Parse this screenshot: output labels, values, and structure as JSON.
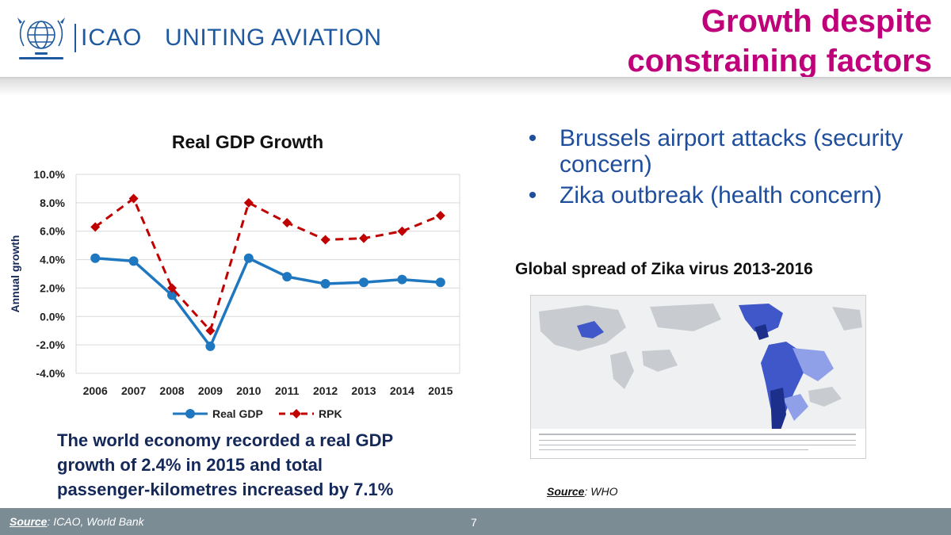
{
  "header": {
    "brand_name": "ICAO",
    "tagline": "UNITING AVIATION",
    "title_line1": "Growth despite",
    "title_line2": "constraining factors",
    "title_color": "#c0007a"
  },
  "chart": {
    "title": "Real GDP Growth",
    "ylabel": "Annual growth",
    "ytick_labels": [
      "10.0%",
      "8.0%",
      "6.0%",
      "4.0%",
      "2.0%",
      "0.0%",
      "-2.0%",
      "-4.0%"
    ],
    "legend": [
      "Real GDP",
      "RPK"
    ]
  },
  "chart_data": {
    "type": "line",
    "title": "Real GDP Growth",
    "xlabel": "",
    "ylabel": "Annual growth",
    "x": [
      "2006",
      "2007",
      "2008",
      "2009",
      "2010",
      "2011",
      "2012",
      "2013",
      "2014",
      "2015"
    ],
    "ylim": [
      -4,
      10
    ],
    "y_unit": "%",
    "grid": true,
    "legend_position": "bottom",
    "series": [
      {
        "name": "Real GDP",
        "color": "#1f77c0",
        "style": "solid",
        "marker": "circle",
        "values": [
          4.1,
          3.9,
          1.5,
          -2.1,
          4.1,
          2.8,
          2.3,
          2.4,
          2.6,
          2.4
        ]
      },
      {
        "name": "RPK",
        "color": "#c00000",
        "style": "dashed",
        "marker": "diamond",
        "values": [
          6.3,
          8.3,
          2.0,
          -1.0,
          8.0,
          6.6,
          5.4,
          5.5,
          6.0,
          7.1
        ]
      }
    ]
  },
  "takeaway": {
    "line1": "The world economy recorded a real GDP",
    "line2": "growth of 2.4% in 2015 and total",
    "line3": "passenger-kilometres increased by 7.1%"
  },
  "bullets": [
    {
      "line1": "Brussels airport attacks (security",
      "line2": "concern)"
    },
    {
      "line1": "Zika outbreak (health concern)",
      "line2": ""
    }
  ],
  "map": {
    "title": "Global spread of Zika virus 2013-2016",
    "source_label": "Source",
    "source_value": ": WHO"
  },
  "footer": {
    "source_label": "Source",
    "source_value": ": ICAO, World Bank",
    "page_number": "7"
  }
}
